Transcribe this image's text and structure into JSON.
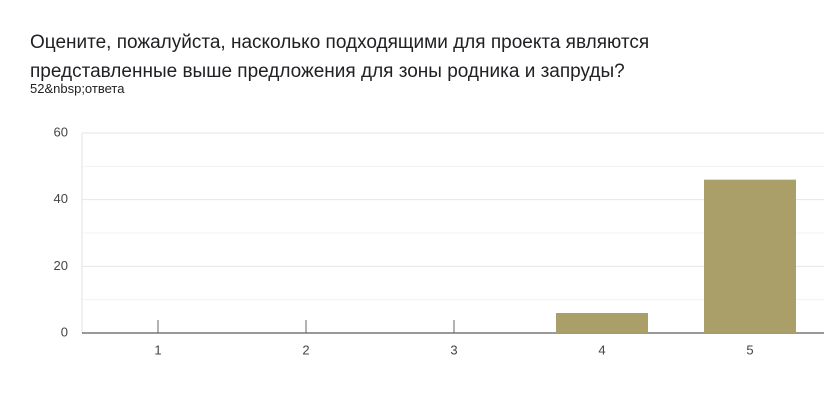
{
  "chart_data": {
    "type": "bar",
    "title": "Оцените, пожалуйста, насколько подходящими для проекта являются представленные выше предложения для зоны родника и запруды?",
    "subtitle": "52&nbsp;ответа",
    "categories": [
      "1",
      "2",
      "3",
      "4",
      "5"
    ],
    "values": [
      0,
      0,
      0,
      6,
      46
    ],
    "color": "#aa9f68",
    "ylim": [
      0,
      60
    ],
    "yticks": [
      0,
      20,
      40,
      60
    ],
    "minor_yticks": [
      10,
      30,
      50
    ],
    "grid": true
  }
}
